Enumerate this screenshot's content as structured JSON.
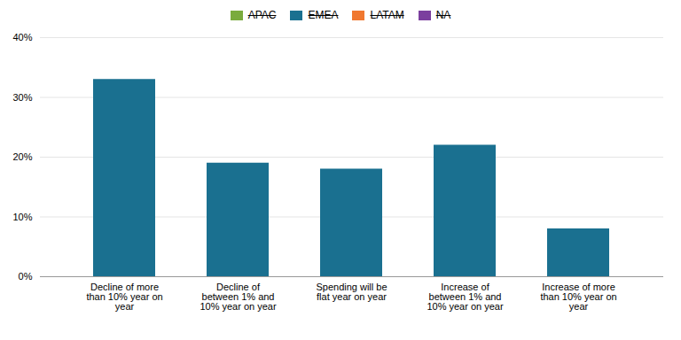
{
  "chart_data": {
    "type": "bar",
    "categories": [
      "Decline of more\nthan 10% year on\nyear",
      "Decline of\nbetween 1% and\n10% year on year",
      "Spending will be\nflat year on year",
      "Increase of\nbetween 1% and\n10% year on year",
      "Increase of more\nthan 10% year on\nyear"
    ],
    "values": [
      33,
      19,
      18,
      22,
      8
    ],
    "color": "#1a7090",
    "ylim": [
      0,
      40
    ],
    "yticks": [
      {
        "value": 0,
        "label": "0%"
      },
      {
        "value": 10,
        "label": "10%"
      },
      {
        "value": 20,
        "label": "20%"
      },
      {
        "value": 30,
        "label": "30%"
      },
      {
        "value": 40,
        "label": "40%"
      }
    ],
    "grid": true,
    "legend": "top",
    "legend_items": [
      {
        "name": "APAC",
        "color": "#7aab3e"
      },
      {
        "name": "EMEA",
        "color": "#1a7090"
      },
      {
        "name": "LATAM",
        "color": "#f07830"
      },
      {
        "name": "NA",
        "color": "#7b3f9e"
      }
    ]
  }
}
